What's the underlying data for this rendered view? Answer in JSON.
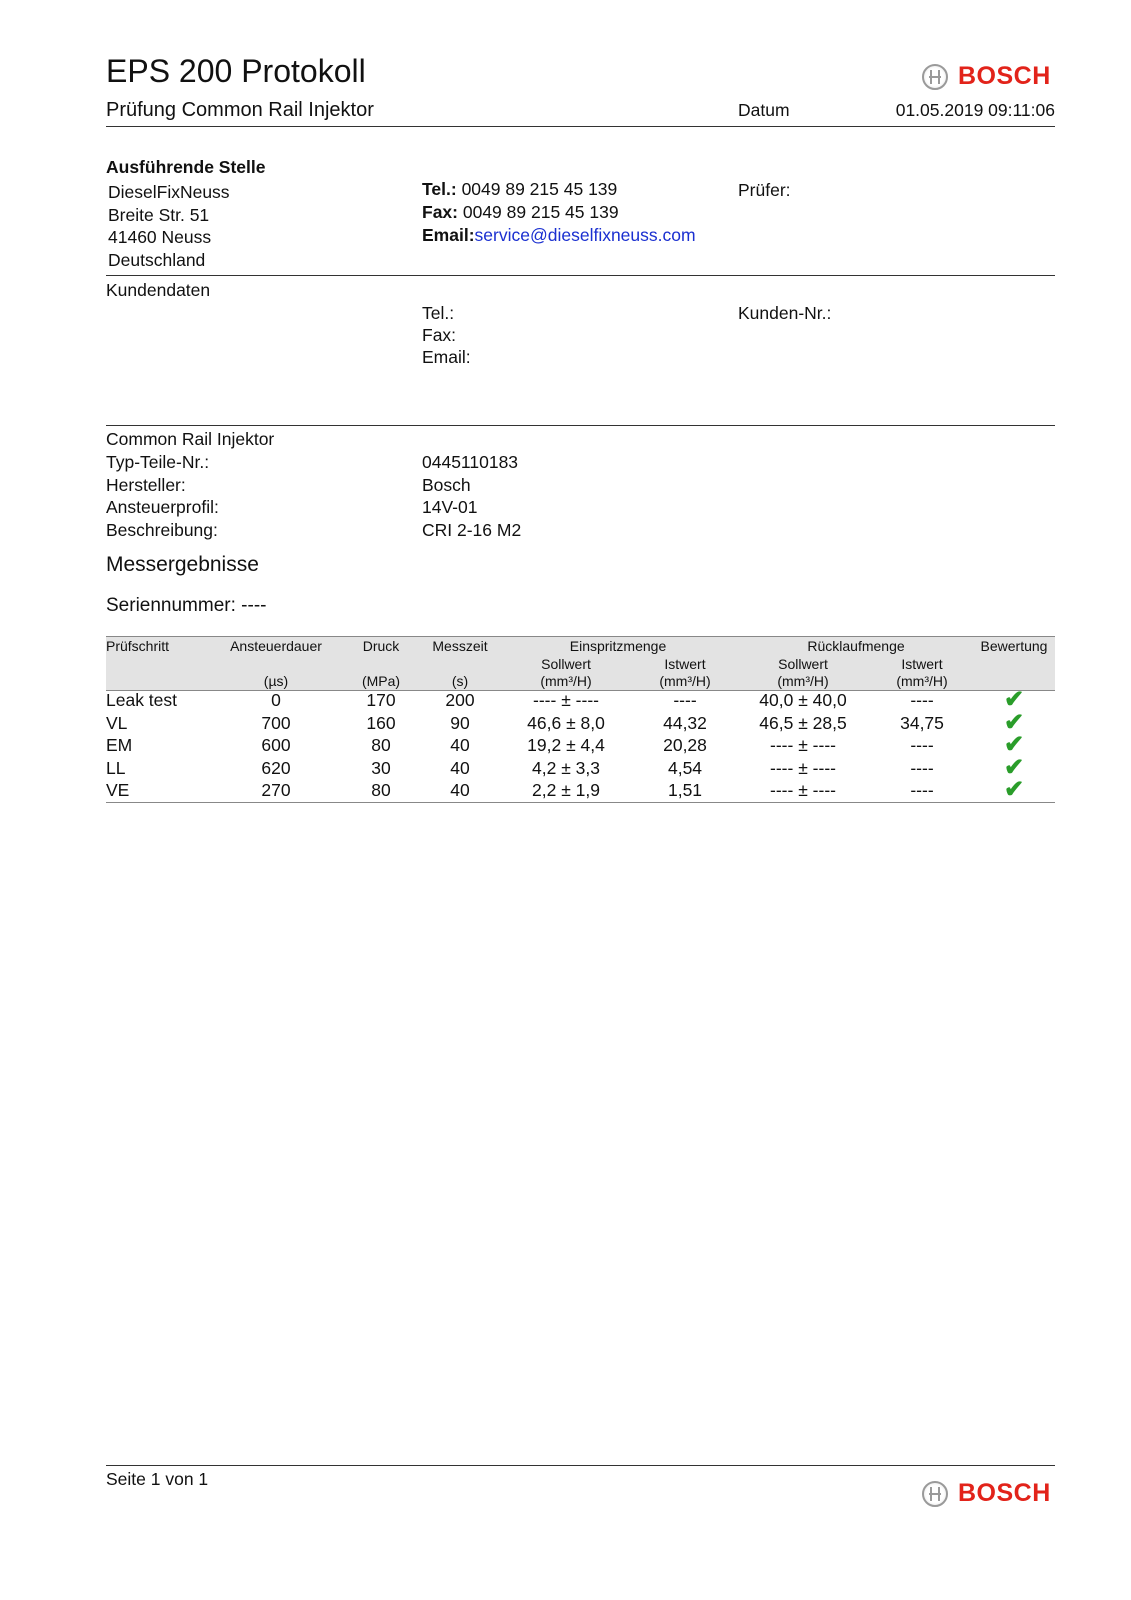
{
  "header": {
    "title": "EPS 200 Protokoll",
    "subtitle": "Prüfung Common Rail Injektor",
    "date_label": "Datum",
    "date_value": "01.05.2019 09:11:06",
    "logo_text": "BOSCH"
  },
  "executing_site": {
    "heading": "Ausführende Stelle",
    "address": [
      "DieselFixNeuss",
      "Breite Str. 51",
      "41460 Neuss",
      "Deutschland"
    ],
    "tel_label": "Tel.:",
    "tel": "0049 89 215 45 139",
    "fax_label": "Fax:",
    "fax": "0049 89 215 45 139",
    "email_label": "Email:",
    "email": "service@dieselfixneuss.com",
    "examiner_label": "Prüfer:"
  },
  "customer": {
    "heading": "Kundendaten",
    "tel_label": "Tel.:",
    "fax_label": "Fax:",
    "email_label": "Email:",
    "customer_no_label": "Kunden-Nr.:"
  },
  "injector": {
    "heading": "Common Rail Injektor",
    "fields": [
      {
        "label": "Typ-Teile-Nr.:",
        "value": "0445110183"
      },
      {
        "label": "Hersteller:",
        "value": "Bosch"
      },
      {
        "label": "Ansteuerprofil:",
        "value": "14V-01"
      },
      {
        "label": "Beschreibung:",
        "value": "CRI 2-16 M2"
      }
    ]
  },
  "results": {
    "heading": "Messergebnisse",
    "serial": "Seriennummer: ----",
    "table": {
      "header_row1": [
        "Prüfschritt",
        "Ansteuerdauer",
        "Druck",
        "Messzeit",
        "Einspritzmenge",
        "Rücklaufmenge",
        "Bewertung"
      ],
      "header_row2": [
        "Sollwert",
        "Istwert",
        "Sollwert",
        "Istwert"
      ],
      "units": [
        "(µs)",
        "(MPa)",
        "(s)",
        "(mm³/H)",
        "(mm³/H)",
        "(mm³/H)",
        "(mm³/H)"
      ],
      "rows": [
        {
          "step": "Leak test",
          "duration": "0",
          "pressure": "170",
          "time": "200",
          "inj_set": "---- ± ----",
          "inj_act": "----",
          "ret_set": "40,0 ± 40,0",
          "ret_act": "----",
          "rating": "ok"
        },
        {
          "step": "VL",
          "duration": "700",
          "pressure": "160",
          "time": "90",
          "inj_set": "46,6 ± 8,0",
          "inj_act": "44,32",
          "ret_set": "46,5 ± 28,5",
          "ret_act": "34,75",
          "rating": "ok"
        },
        {
          "step": "EM",
          "duration": "600",
          "pressure": "80",
          "time": "40",
          "inj_set": "19,2 ± 4,4",
          "inj_act": "20,28",
          "ret_set": "---- ± ----",
          "ret_act": "----",
          "rating": "ok"
        },
        {
          "step": "LL",
          "duration": "620",
          "pressure": "30",
          "time": "40",
          "inj_set": "4,2 ± 3,3",
          "inj_act": "4,54",
          "ret_set": "---- ± ----",
          "ret_act": "----",
          "rating": "ok"
        },
        {
          "step": "VE",
          "duration": "270",
          "pressure": "80",
          "time": "40",
          "inj_set": "2,2 ± 1,9",
          "inj_act": "1,51",
          "ret_set": "---- ± ----",
          "ret_act": "----",
          "rating": "ok"
        }
      ]
    },
    "check_icon": "check-icon",
    "check_color": "#2a9d2a"
  },
  "footer": {
    "page": "Seite 1 von 1",
    "logo_text": "BOSCH"
  },
  "colors": {
    "brand": "#e2231a",
    "link": "#1a2fd0"
  }
}
